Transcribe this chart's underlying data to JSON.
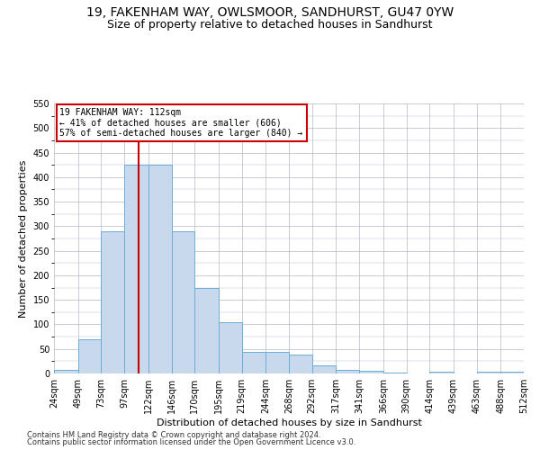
{
  "title": "19, FAKENHAM WAY, OWLSMOOR, SANDHURST, GU47 0YW",
  "subtitle": "Size of property relative to detached houses in Sandhurst",
  "xlabel": "Distribution of detached houses by size in Sandhurst",
  "ylabel": "Number of detached properties",
  "bar_color": "#c8d9ed",
  "bar_edge_color": "#6baed6",
  "grid_color": "#b0b8c8",
  "vline_color": "#cc0000",
  "vline_x": 112,
  "annotation_line1": "19 FAKENHAM WAY: 112sqm",
  "annotation_line2": "← 41% of detached houses are smaller (606)",
  "annotation_line3": "57% of semi-detached houses are larger (840) →",
  "annotation_box_color": "#ffffff",
  "annotation_box_edge": "#cc0000",
  "footer1": "Contains HM Land Registry data © Crown copyright and database right 2024.",
  "footer2": "Contains public sector information licensed under the Open Government Licence v3.0.",
  "bin_edges": [
    24,
    49,
    73,
    97,
    122,
    146,
    170,
    195,
    219,
    244,
    268,
    292,
    317,
    341,
    366,
    390,
    414,
    439,
    463,
    488,
    512
  ],
  "bar_heights": [
    8,
    70,
    290,
    425,
    425,
    290,
    175,
    105,
    44,
    44,
    38,
    17,
    8,
    5,
    2,
    0,
    4,
    0,
    4,
    3
  ],
  "ylim": [
    0,
    550
  ],
  "yticks": [
    0,
    50,
    100,
    150,
    200,
    250,
    300,
    350,
    400,
    450,
    500,
    550
  ],
  "background_color": "#ffffff",
  "title_fontsize": 10,
  "subtitle_fontsize": 9,
  "axis_label_fontsize": 8,
  "tick_label_fontsize": 7,
  "footer_fontsize": 6
}
